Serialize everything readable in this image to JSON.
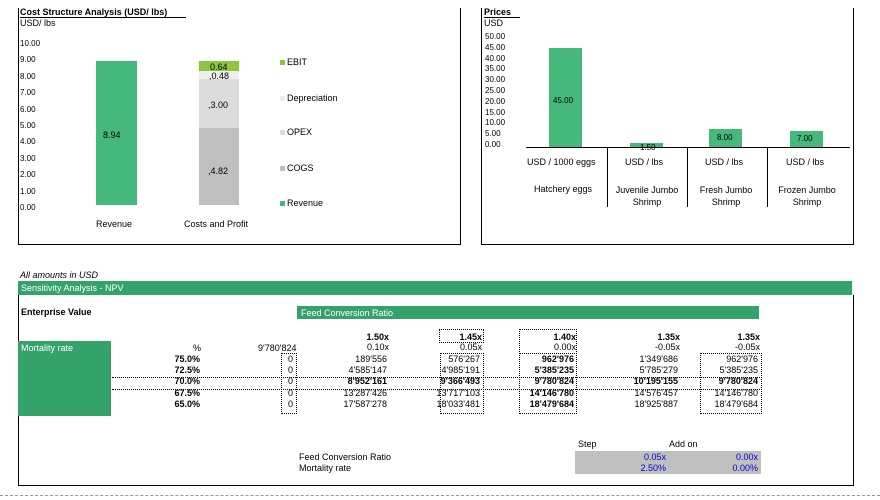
{
  "cost_panel": {
    "title": "Cost Structure Analysis (USD/ lbs)",
    "unit": "USD/ lbs",
    "yticks": [
      "10.00",
      "9.00",
      "8.00",
      "7.00",
      "6.00",
      "5.00",
      "4.00",
      "3.00",
      "2.00",
      "1.00",
      "0.00"
    ],
    "legend": [
      "EBIT",
      "Depreciation",
      "OPEX",
      "COGS",
      "Revenue"
    ],
    "revenue_label": "8.94",
    "cogs_label": ",4.82",
    "opex_label": ",3.00",
    "dep_label": ",0.48",
    "ebit_label": "0.64",
    "cat_revenue": "Revenue",
    "cat_costs": "Costs and Profit"
  },
  "price_panel": {
    "title": "Prices",
    "unit": "USD",
    "yticks": [
      "50.00",
      "45.00",
      "40.00",
      "35.00",
      "30.00",
      "25.00",
      "20.00",
      "15.00",
      "10.00",
      "5.00",
      "0.00"
    ],
    "bars": [
      {
        "label": "45.00",
        "unit": "USD / 1000 eggs",
        "name": "Hatchery eggs"
      },
      {
        "label": "1.50",
        "unit": "USD / lbs",
        "name": "Juvenile Jumbo Shrimp"
      },
      {
        "label": "8.00",
        "unit": "USD / lbs",
        "name": "Fresh Jumbo Shrimp"
      },
      {
        "label": "7.00",
        "unit": "USD / lbs",
        "name": "Frozen Jumbo Shrimp"
      }
    ]
  },
  "chart_data": [
    {
      "type": "bar",
      "title": "Cost Structure Analysis (USD/ lbs)",
      "ylabel": "USD/ lbs",
      "ylim": [
        0,
        10
      ],
      "categories": [
        "Revenue",
        "Costs and Profit"
      ],
      "series": [
        {
          "name": "Revenue",
          "values": [
            8.94,
            0
          ]
        },
        {
          "name": "COGS",
          "values": [
            0,
            4.82
          ]
        },
        {
          "name": "OPEX",
          "values": [
            0,
            3.0
          ]
        },
        {
          "name": "Depreciation",
          "values": [
            0,
            0.48
          ]
        },
        {
          "name": "EBIT",
          "values": [
            0,
            0.64
          ]
        }
      ],
      "legend": "right"
    },
    {
      "type": "bar",
      "title": "Prices",
      "ylabel": "USD",
      "ylim": [
        0,
        50
      ],
      "categories": [
        "Hatchery eggs",
        "Juvenile Jumbo Shrimp",
        "Fresh Jumbo Shrimp",
        "Frozen Jumbo Shrimp"
      ],
      "values": [
        45.0,
        1.5,
        8.0,
        7.0
      ]
    }
  ],
  "sensitivity": {
    "note": "All amounts in USD",
    "title": "Sensitivity Analysis - NPV",
    "ev_label": "Enterprise Value",
    "fcr_header": "Feed Conversion Ratio",
    "mort_label": "Mortality rate",
    "corner_pct": "%",
    "corner_val": "9'780'824",
    "fcr": [
      "1.50x",
      "1.45x",
      "1.40x",
      "1.35x",
      "1.35x"
    ],
    "deltas": [
      "0.10x",
      "0.05x",
      "0.00x",
      "-0.05x",
      "-0.05x"
    ],
    "rows": [
      {
        "rate": "75.0%",
        "zero": "0",
        "vals": [
          "189'556",
          "576'267",
          "962'976",
          "1'349'686",
          "962'976"
        ]
      },
      {
        "rate": "72.5%",
        "zero": "0",
        "vals": [
          "4'585'147",
          "4'985'191",
          "5'385'235",
          "5'785'279",
          "5'385'235"
        ]
      },
      {
        "rate": "70.0%",
        "zero": "0",
        "vals": [
          "8'952'161",
          "9'366'493",
          "9'780'824",
          "10'195'155",
          "9'780'824"
        ]
      },
      {
        "rate": "67.5%",
        "zero": "0",
        "vals": [
          "13'287'426",
          "13'717'103",
          "14'146'780",
          "14'576'457",
          "14'146'780"
        ]
      },
      {
        "rate": "65.0%",
        "zero": "0",
        "vals": [
          "17'587'278",
          "18'033'481",
          "18'479'684",
          "18'925'887",
          "18'479'684"
        ]
      }
    ],
    "step_header": "Step",
    "addon_header": "Add on",
    "fcr_label": "Feed Conversion Ratio",
    "mort_rate_label": "Mortality rate",
    "fcr_step": "0.05x",
    "fcr_addon": "0.00x",
    "mort_step": "2.50%",
    "mort_addon": "0.00%"
  }
}
